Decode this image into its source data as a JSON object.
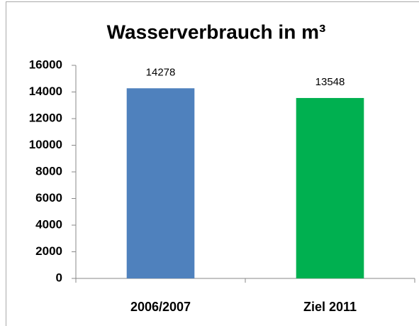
{
  "chart_data": {
    "type": "bar",
    "title": "Wasserverbrauch in m³",
    "categories": [
      "2006/2007",
      "Ziel 2011"
    ],
    "values": [
      14278,
      13548
    ],
    "colors": [
      "#4f81bd",
      "#00b050"
    ],
    "ylim": [
      0,
      16000
    ],
    "yticks": [
      0,
      2000,
      4000,
      6000,
      8000,
      10000,
      12000,
      14000,
      16000
    ],
    "grid": false,
    "data_labels": true
  }
}
